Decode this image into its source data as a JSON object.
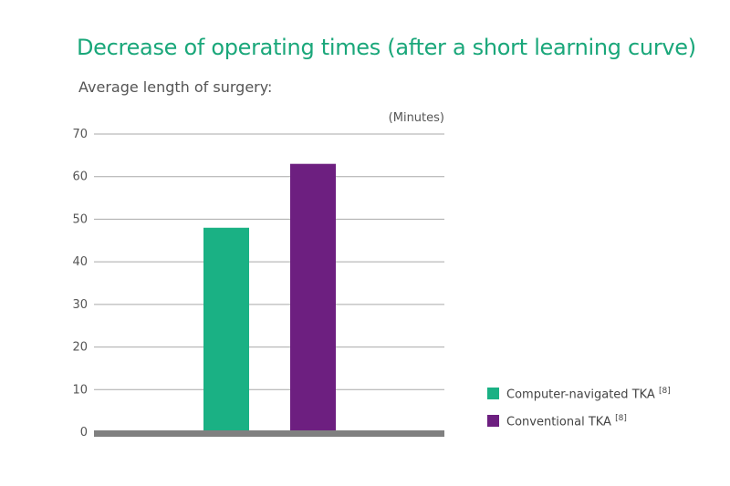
{
  "chart_data": {
    "type": "bar",
    "title": "Decrease of operating times (after a short learning curve)",
    "subtitle": "Average length of surgery:",
    "ylabel": "(Minutes)",
    "ylim": [
      0,
      70
    ],
    "yticks": [
      0,
      10,
      20,
      30,
      40,
      50,
      60,
      70
    ],
    "grid": true,
    "legend_position": "bottom-right",
    "series": [
      {
        "name": "Computer-navigated TKA",
        "ref": "[8]",
        "value": 48,
        "color": "#1ab184"
      },
      {
        "name": "Conventional TKA",
        "ref": "[8]",
        "value": 63,
        "color": "#6d1f80"
      }
    ]
  }
}
